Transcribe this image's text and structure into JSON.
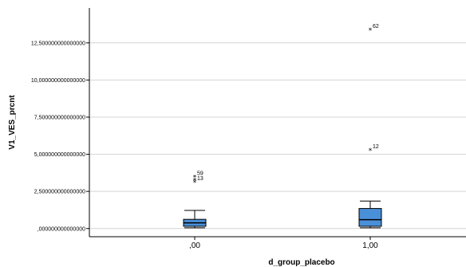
{
  "chart_data": {
    "type": "boxplot",
    "xlabel": "d_group_placebo",
    "ylabel": "V1_VES_prcnt",
    "ylim": [
      -0.55,
      14.85
    ],
    "y_ticks": [
      {
        "value": 0,
        "label": ",000000000000000"
      },
      {
        "value": 2.5,
        "label": "2,500000000000000"
      },
      {
        "value": 5,
        "label": "5,000000000000000"
      },
      {
        "value": 7.5,
        "label": "7,500000000000000"
      },
      {
        "value": 10,
        "label": "10,000000000000000"
      },
      {
        "value": 12.5,
        "label": "12,500000000000000"
      }
    ],
    "grid": "horizontal",
    "box_color": "#4a90d9",
    "groups": [
      {
        "label": ",00",
        "min": 0.05,
        "q1": 0.15,
        "median": 0.38,
        "q3": 0.62,
        "max": 1.22,
        "outliers": [
          {
            "value": 3.5,
            "label": "59"
          },
          {
            "value": 3.3,
            "label": ""
          },
          {
            "value": 3.15,
            "label": "13"
          }
        ]
      },
      {
        "label": "1,00",
        "min": 0.05,
        "q1": 0.15,
        "median": 0.6,
        "q3": 1.35,
        "max": 1.85,
        "outliers": [
          {
            "value": 13.4,
            "label": "62"
          },
          {
            "value": 5.3,
            "label": "12"
          }
        ]
      }
    ]
  }
}
